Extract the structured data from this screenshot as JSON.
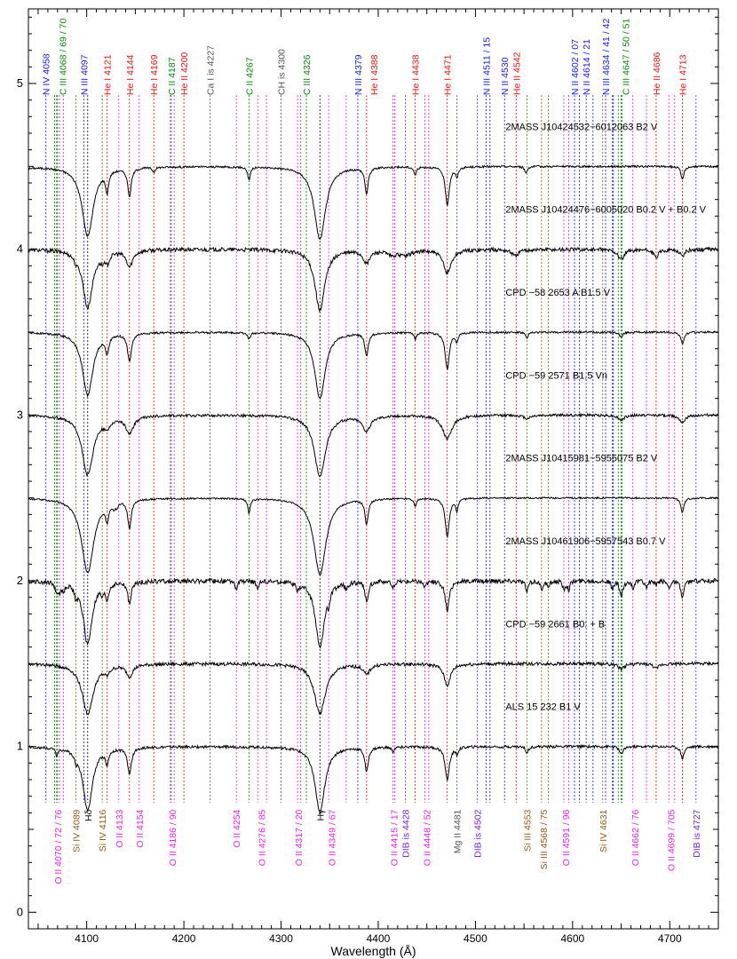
{
  "chart_data": {
    "type": "line",
    "title": "",
    "xlabel": "Wavelength (Å)",
    "ylabel": "",
    "xlim": [
      4040,
      4750
    ],
    "ylim": [
      -0.1,
      5.45
    ],
    "x_ticks": [
      4100,
      4200,
      4300,
      4400,
      4500,
      4600,
      4700
    ],
    "y_ticks": [
      0,
      1,
      2,
      3,
      4,
      5
    ],
    "grid": false,
    "colors": {
      "blue": "#1a1aff",
      "green": "#0a8a0a",
      "red": "#ee1111",
      "gray": "#555555",
      "magenta": "#ee22ee",
      "brown": "#9a5a1a",
      "purple": "#7a22dd",
      "black": "#111111"
    },
    "top_labels": [
      {
        "text": "N IV 4058",
        "wl": 4058,
        "color": "blue",
        "slot": 0
      },
      {
        "text": "C III 4068 / 69 / 70",
        "wl": 4068,
        "color": "green",
        "slot": 1
      },
      {
        "text": "N III 4097",
        "wl": 4097,
        "color": "blue",
        "slot": 0
      },
      {
        "text": "He I 4121",
        "wl": 4121,
        "color": "red",
        "slot": 0
      },
      {
        "text": "He I 4144",
        "wl": 4144,
        "color": "red",
        "slot": 0
      },
      {
        "text": "He I 4169",
        "wl": 4169,
        "color": "red",
        "slot": 0
      },
      {
        "text": "C II 4187",
        "wl": 4187,
        "color": "green",
        "slot": 0
      },
      {
        "text": "He II 4200",
        "wl": 4200,
        "color": "red",
        "slot": 0
      },
      {
        "text": "Ca I is 4227",
        "wl": 4227,
        "color": "gray",
        "slot": 0
      },
      {
        "text": "C II 4267",
        "wl": 4267,
        "color": "green",
        "slot": 0
      },
      {
        "text": "CH is 4300",
        "wl": 4300,
        "color": "gray",
        "slot": 0
      },
      {
        "text": "C III 4326",
        "wl": 4326,
        "color": "green",
        "slot": 0
      },
      {
        "text": "N III 4379",
        "wl": 4379,
        "color": "blue",
        "slot": 0
      },
      {
        "text": "He I 4388",
        "wl": 4388,
        "color": "red",
        "slot": 1
      },
      {
        "text": "He I 4438",
        "wl": 4438,
        "color": "red",
        "slot": 0
      },
      {
        "text": "He I 4471",
        "wl": 4471,
        "color": "red",
        "slot": 0
      },
      {
        "text": "N III 4511 / 15",
        "wl": 4511,
        "color": "blue",
        "slot": 0
      },
      {
        "text": "N II 4530",
        "wl": 4530,
        "color": "blue",
        "slot": 0
      },
      {
        "text": "He II 4542",
        "wl": 4542,
        "color": "red",
        "slot": 0
      },
      {
        "text": "N II 4602 / 07",
        "wl": 4602,
        "color": "blue",
        "slot": 0
      },
      {
        "text": "N II 4614 / 21",
        "wl": 4614,
        "color": "blue",
        "slot": 0
      },
      {
        "text": "N III 4634 / 41 / 42",
        "wl": 4634,
        "color": "blue",
        "slot": 0
      },
      {
        "text": "C III 4647 / 50 / 51",
        "wl": 4647,
        "color": "green",
        "slot": 1
      },
      {
        "text": "He II 4686",
        "wl": 4686,
        "color": "red",
        "slot": 0
      },
      {
        "text": "He I 4713",
        "wl": 4713,
        "color": "red",
        "slot": 0
      }
    ],
    "bottom_labels": [
      {
        "text": "O II 4070 / 72 / 76",
        "wl": 4070,
        "color": "magenta"
      },
      {
        "text": "Si IV 4089",
        "wl": 4089,
        "color": "brown"
      },
      {
        "text": "Hδ",
        "wl": 4101,
        "color": "black"
      },
      {
        "text": "Si IV 4116",
        "wl": 4116,
        "color": "brown"
      },
      {
        "text": "O II 4133",
        "wl": 4133,
        "color": "magenta"
      },
      {
        "text": "O II 4154",
        "wl": 4154,
        "color": "magenta"
      },
      {
        "text": "O II 4186 / 90",
        "wl": 4188,
        "color": "magenta"
      },
      {
        "text": "O II 4254",
        "wl": 4254,
        "color": "magenta"
      },
      {
        "text": "O II 4276 / 85",
        "wl": 4280,
        "color": "magenta"
      },
      {
        "text": "O II 4317 / 20",
        "wl": 4318,
        "color": "magenta"
      },
      {
        "text": "Hγ",
        "wl": 4340,
        "color": "black"
      },
      {
        "text": "O II 4349 / 67",
        "wl": 4352,
        "color": "magenta"
      },
      {
        "text": "O II 4415 / 17",
        "wl": 4416,
        "color": "magenta"
      },
      {
        "text": "DIB is 4428",
        "wl": 4428,
        "color": "purple"
      },
      {
        "text": "O II 4448 / 52",
        "wl": 4450,
        "color": "magenta"
      },
      {
        "text": "Mg II 4481",
        "wl": 4481,
        "color": "gray"
      },
      {
        "text": "DIB is 4502",
        "wl": 4502,
        "color": "purple"
      },
      {
        "text": "Si III 4553",
        "wl": 4553,
        "color": "brown"
      },
      {
        "text": "Si III 4568 / 75",
        "wl": 4570,
        "color": "brown"
      },
      {
        "text": "O II 4591 / 96",
        "wl": 4593,
        "color": "magenta"
      },
      {
        "text": "Si IV 4631",
        "wl": 4631,
        "color": "brown"
      },
      {
        "text": "O II 4662 / 76",
        "wl": 4664,
        "color": "magenta"
      },
      {
        "text": "O II 4699 / 705",
        "wl": 4701,
        "color": "magenta"
      },
      {
        "text": "DIB is 4727",
        "wl": 4727,
        "color": "purple"
      }
    ],
    "line_marks": [
      {
        "wl": 4058,
        "color": "blue"
      },
      {
        "wl": 4067,
        "color": "green"
      },
      {
        "wl": 4069,
        "color": "green"
      },
      {
        "wl": 4070,
        "color": "green"
      },
      {
        "wl": 4072,
        "color": "magenta"
      },
      {
        "wl": 4076,
        "color": "magenta"
      },
      {
        "wl": 4089,
        "color": "brown"
      },
      {
        "wl": 4097,
        "color": "blue"
      },
      {
        "wl": 4101,
        "color": "black"
      },
      {
        "wl": 4116,
        "color": "brown"
      },
      {
        "wl": 4121,
        "color": "red"
      },
      {
        "wl": 4133,
        "color": "magenta"
      },
      {
        "wl": 4144,
        "color": "red"
      },
      {
        "wl": 4154,
        "color": "magenta"
      },
      {
        "wl": 4169,
        "color": "red"
      },
      {
        "wl": 4186,
        "color": "magenta"
      },
      {
        "wl": 4187,
        "color": "green"
      },
      {
        "wl": 4190,
        "color": "magenta"
      },
      {
        "wl": 4200,
        "color": "red"
      },
      {
        "wl": 4227,
        "color": "gray"
      },
      {
        "wl": 4254,
        "color": "magenta"
      },
      {
        "wl": 4267,
        "color": "green"
      },
      {
        "wl": 4276,
        "color": "magenta"
      },
      {
        "wl": 4285,
        "color": "magenta"
      },
      {
        "wl": 4300,
        "color": "gray"
      },
      {
        "wl": 4317,
        "color": "magenta"
      },
      {
        "wl": 4320,
        "color": "magenta"
      },
      {
        "wl": 4326,
        "color": "green"
      },
      {
        "wl": 4340,
        "color": "black"
      },
      {
        "wl": 4349,
        "color": "magenta"
      },
      {
        "wl": 4367,
        "color": "magenta"
      },
      {
        "wl": 4379,
        "color": "blue"
      },
      {
        "wl": 4388,
        "color": "red"
      },
      {
        "wl": 4415,
        "color": "magenta"
      },
      {
        "wl": 4417,
        "color": "magenta"
      },
      {
        "wl": 4428,
        "color": "purple"
      },
      {
        "wl": 4438,
        "color": "red"
      },
      {
        "wl": 4448,
        "color": "magenta"
      },
      {
        "wl": 4452,
        "color": "magenta"
      },
      {
        "wl": 4471,
        "color": "red"
      },
      {
        "wl": 4481,
        "color": "gray"
      },
      {
        "wl": 4502,
        "color": "purple"
      },
      {
        "wl": 4511,
        "color": "blue"
      },
      {
        "wl": 4515,
        "color": "blue"
      },
      {
        "wl": 4530,
        "color": "blue"
      },
      {
        "wl": 4542,
        "color": "red"
      },
      {
        "wl": 4553,
        "color": "brown"
      },
      {
        "wl": 4568,
        "color": "brown"
      },
      {
        "wl": 4575,
        "color": "brown"
      },
      {
        "wl": 4591,
        "color": "magenta"
      },
      {
        "wl": 4596,
        "color": "magenta"
      },
      {
        "wl": 4602,
        "color": "blue"
      },
      {
        "wl": 4607,
        "color": "blue"
      },
      {
        "wl": 4614,
        "color": "blue"
      },
      {
        "wl": 4621,
        "color": "blue"
      },
      {
        "wl": 4631,
        "color": "brown"
      },
      {
        "wl": 4634,
        "color": "blue"
      },
      {
        "wl": 4641,
        "color": "blue"
      },
      {
        "wl": 4642,
        "color": "blue"
      },
      {
        "wl": 4647,
        "color": "green"
      },
      {
        "wl": 4650,
        "color": "green"
      },
      {
        "wl": 4651,
        "color": "green"
      },
      {
        "wl": 4662,
        "color": "magenta"
      },
      {
        "wl": 4676,
        "color": "magenta"
      },
      {
        "wl": 4686,
        "color": "red"
      },
      {
        "wl": 4699,
        "color": "magenta"
      },
      {
        "wl": 4705,
        "color": "magenta"
      },
      {
        "wl": 4713,
        "color": "red"
      },
      {
        "wl": 4727,
        "color": "purple"
      }
    ],
    "series": [
      {
        "name": "2MASS J10424532−6012063   B2 V",
        "continuum": 4.5,
        "noise": 0.006,
        "lines": [
          [
            4101,
            0.42,
            7
          ],
          [
            4340,
            0.44,
            7
          ],
          [
            4026,
            0.2,
            3
          ],
          [
            4121,
            0.12,
            1.8
          ],
          [
            4144,
            0.17,
            2.2
          ],
          [
            4388,
            0.16,
            2
          ],
          [
            4471,
            0.23,
            2.5
          ],
          [
            4481,
            0.06,
            1.5
          ],
          [
            4267,
            0.08,
            1.5
          ],
          [
            4438,
            0.05,
            1.5
          ],
          [
            4713,
            0.08,
            1.8
          ],
          [
            4552,
            0.04,
            1.5
          ],
          [
            4169,
            0.03,
            1.5
          ]
        ]
      },
      {
        "name": "2MASS J10424476−6005020   B0.2 V + B0.2 V",
        "continuum": 4.0,
        "noise": 0.012,
        "lines": [
          [
            4101,
            0.35,
            6
          ],
          [
            4340,
            0.37,
            6
          ],
          [
            4121,
            0.06,
            3
          ],
          [
            4144,
            0.1,
            4
          ],
          [
            4388,
            0.08,
            4
          ],
          [
            4471,
            0.14,
            5
          ],
          [
            4541,
            0.04,
            4
          ],
          [
            4686,
            0.05,
            3
          ],
          [
            4650,
            0.06,
            4
          ],
          [
            4713,
            0.04,
            3
          ],
          [
            4089,
            0.03,
            2
          ],
          [
            4116,
            0.03,
            2
          ],
          [
            4414,
            0.03,
            6
          ],
          [
            4428,
            0.03,
            8
          ]
        ]
      },
      {
        "name": "CPD −58 2653 A   B1.5 V",
        "continuum": 3.5,
        "noise": 0.006,
        "lines": [
          [
            4101,
            0.38,
            6.5
          ],
          [
            4340,
            0.4,
            6.5
          ],
          [
            4121,
            0.1,
            2
          ],
          [
            4144,
            0.17,
            2.4
          ],
          [
            4388,
            0.14,
            2.1
          ],
          [
            4471,
            0.22,
            2.6
          ],
          [
            4713,
            0.07,
            2
          ],
          [
            4481,
            0.05,
            1.5
          ],
          [
            4267,
            0.04,
            1.5
          ],
          [
            4438,
            0.04,
            1.5
          ],
          [
            4553,
            0.04,
            1.5
          ],
          [
            4650,
            0.03,
            2
          ]
        ]
      },
      {
        "name": "CPD −59 2571   B1.5 Vn",
        "continuum": 3.0,
        "noise": 0.008,
        "lines": [
          [
            4101,
            0.36,
            7
          ],
          [
            4340,
            0.37,
            7
          ],
          [
            4121,
            0.05,
            4
          ],
          [
            4144,
            0.1,
            5
          ],
          [
            4388,
            0.09,
            5
          ],
          [
            4471,
            0.14,
            6
          ],
          [
            4713,
            0.04,
            4
          ],
          [
            4650,
            0.03,
            4
          ],
          [
            4553,
            0.02,
            4
          ]
        ]
      },
      {
        "name": "2MASS J10415981−5955075   B2 V",
        "continuum": 2.5,
        "noise": 0.005,
        "lines": [
          [
            4101,
            0.45,
            7.5
          ],
          [
            4340,
            0.46,
            7.5
          ],
          [
            4121,
            0.1,
            1.8
          ],
          [
            4144,
            0.17,
            2.2
          ],
          [
            4388,
            0.15,
            2
          ],
          [
            4471,
            0.23,
            2.5
          ],
          [
            4481,
            0.07,
            1.5
          ],
          [
            4267,
            0.09,
            1.5
          ],
          [
            4438,
            0.05,
            1.5
          ],
          [
            4713,
            0.09,
            1.8
          ],
          [
            4128,
            0.03,
            1.5
          ],
          [
            4131,
            0.03,
            1.5
          ]
        ]
      },
      {
        "name": "2MASS J10461906−5957543   B0.7 V",
        "continuum": 2.0,
        "noise": 0.014,
        "lines": [
          [
            4101,
            0.38,
            5.5
          ],
          [
            4340,
            0.4,
            5.5
          ],
          [
            4121,
            0.09,
            2
          ],
          [
            4144,
            0.13,
            2.2
          ],
          [
            4388,
            0.12,
            2
          ],
          [
            4471,
            0.18,
            2.5
          ],
          [
            4069,
            0.06,
            1.5
          ],
          [
            4072,
            0.05,
            1.5
          ],
          [
            4076,
            0.05,
            1.5
          ],
          [
            4089,
            0.06,
            1.5
          ],
          [
            4116,
            0.05,
            1.5
          ],
          [
            4254,
            0.05,
            1.5
          ],
          [
            4276,
            0.04,
            1.5
          ],
          [
            4317,
            0.05,
            1.5
          ],
          [
            4349,
            0.06,
            1.5
          ],
          [
            4367,
            0.04,
            1.5
          ],
          [
            4415,
            0.05,
            1.5
          ],
          [
            4448,
            0.04,
            1.5
          ],
          [
            4553,
            0.07,
            1.5
          ],
          [
            4568,
            0.05,
            1.5
          ],
          [
            4575,
            0.04,
            1.5
          ],
          [
            4591,
            0.05,
            1.5
          ],
          [
            4596,
            0.05,
            1.5
          ],
          [
            4641,
            0.05,
            1.5
          ],
          [
            4650,
            0.09,
            2
          ],
          [
            4662,
            0.04,
            1.5
          ],
          [
            4676,
            0.04,
            1.5
          ],
          [
            4686,
            0.03,
            1.5
          ],
          [
            4699,
            0.04,
            1.5
          ],
          [
            4713,
            0.1,
            2
          ]
        ]
      },
      {
        "name": "CPD −59 2661   B0: + B",
        "continuum": 1.5,
        "noise": 0.01,
        "lines": [
          [
            4101,
            0.3,
            7
          ],
          [
            4340,
            0.3,
            7
          ],
          [
            4471,
            0.13,
            4
          ],
          [
            4144,
            0.07,
            4
          ],
          [
            4388,
            0.06,
            4
          ],
          [
            4121,
            0.04,
            3
          ],
          [
            4650,
            0.03,
            4
          ],
          [
            4686,
            0.03,
            3
          ]
        ]
      },
      {
        "name": "ALS 15 232   B1 V",
        "continuum": 1.0,
        "noise": 0.008,
        "lines": [
          [
            4101,
            0.38,
            6
          ],
          [
            4340,
            0.4,
            6
          ],
          [
            4121,
            0.08,
            2
          ],
          [
            4144,
            0.16,
            2.4
          ],
          [
            4388,
            0.15,
            2.1
          ],
          [
            4471,
            0.2,
            2.6
          ],
          [
            4713,
            0.07,
            2
          ],
          [
            4069,
            0.04,
            1.5
          ],
          [
            4089,
            0.04,
            1.5
          ],
          [
            4553,
            0.04,
            1.5
          ],
          [
            4650,
            0.05,
            2
          ],
          [
            4415,
            0.03,
            1.5
          ],
          [
            4481,
            0.04,
            1.5
          ]
        ]
      }
    ]
  }
}
